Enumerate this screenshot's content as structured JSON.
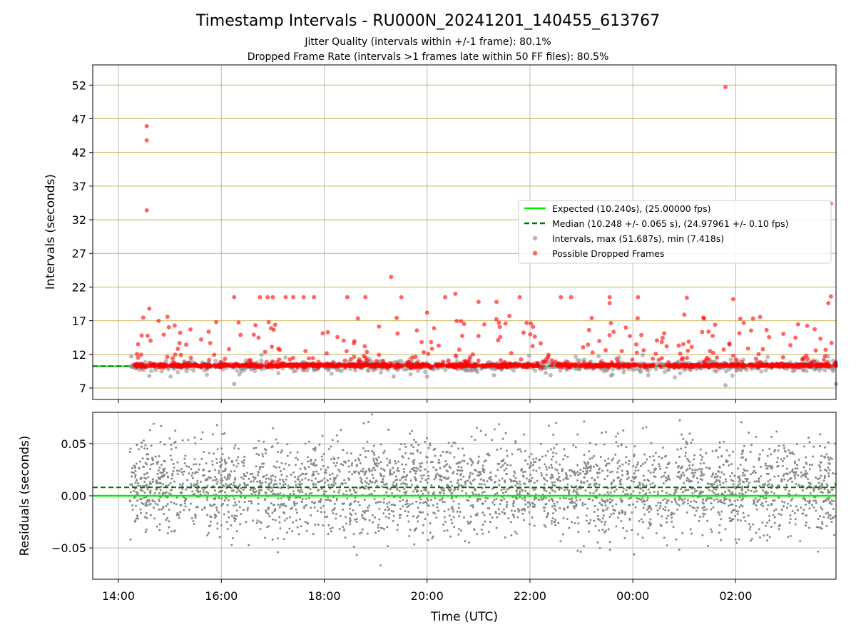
{
  "title": "Timestamp Intervals - RU000N_20241201_140455_613767",
  "subtitle_lines": [
    "Jitter Quality (intervals within +/-1 frame): 80.1%",
    "Dropped Frame Rate (intervals >1 frames late within 50 FF files): 80.5%"
  ],
  "colors": {
    "expected": "#00ee00",
    "median": "#007700",
    "intervals": "#888888",
    "dropped": "#ff0000",
    "grid": "#bbbbbb",
    "hgrid": "#c8b45a"
  },
  "chart_data": [
    {
      "type": "scatter",
      "xlabel": "",
      "ylabel": "Intervals (seconds)",
      "x_tick_labels": [
        "14:00",
        "16:00",
        "18:00",
        "20:00",
        "22:00",
        "00:00",
        "02:00"
      ],
      "x_ticks_hours": [
        14,
        16,
        18,
        20,
        22,
        24,
        26
      ],
      "xlim_hours": [
        13.5,
        27.95
      ],
      "ylim": [
        5.3,
        55
      ],
      "y_ticks": [
        7,
        12,
        17,
        22,
        27,
        32,
        37,
        42,
        47,
        52
      ],
      "grid": true,
      "legend_placement": "center-right",
      "legend": [
        "Expected (10.240s), (25.00000 fps)",
        "Median (10.248 +/- 0.065 s), (24.97961 +/- 0.10 fps)",
        "Intervals, max (51.687s), min (7.418s)",
        "Possible Dropped Frames"
      ],
      "expected_interval": 10.24,
      "median_interval": 10.248,
      "series": [
        {
          "name": "Possible Dropped Frames",
          "kind": "dropped",
          "sample_points": [
            [
              14.55,
              45.9
            ],
            [
              14.55,
              43.8
            ],
            [
              14.55,
              33.4
            ],
            [
              14.6,
              18.8
            ],
            [
              14.45,
              14.8
            ],
            [
              15.2,
              15.2
            ],
            [
              15.4,
              15.7
            ],
            [
              15.9,
              16.8
            ],
            [
              16.25,
              20.5
            ],
            [
              16.75,
              20.5
            ],
            [
              16.9,
              20.5
            ],
            [
              17.0,
              20.5
            ],
            [
              17.25,
              20.5
            ],
            [
              17.4,
              20.5
            ],
            [
              17.6,
              20.5
            ],
            [
              17.8,
              20.5
            ],
            [
              18.45,
              20.5
            ],
            [
              18.8,
              20.5
            ],
            [
              19.3,
              23.5
            ],
            [
              19.5,
              20.5
            ],
            [
              20.0,
              18.2
            ],
            [
              20.35,
              20.5
            ],
            [
              20.55,
              21.0
            ],
            [
              21.0,
              19.8
            ],
            [
              21.35,
              19.8
            ],
            [
              21.6,
              17.7
            ],
            [
              21.8,
              20.5
            ],
            [
              22.6,
              20.5
            ],
            [
              22.8,
              20.5
            ],
            [
              23.2,
              17.4
            ],
            [
              23.55,
              20.5
            ],
            [
              23.55,
              19.6
            ],
            [
              24.1,
              20.5
            ],
            [
              25.0,
              17.9
            ],
            [
              25.05,
              20.4
            ],
            [
              25.6,
              16.4
            ],
            [
              25.8,
              51.7
            ],
            [
              25.95,
              20.2
            ],
            [
              26.6,
              15.6
            ],
            [
              27.85,
              34.4
            ],
            [
              27.85,
              20.6
            ],
            [
              27.8,
              19.6
            ]
          ]
        },
        {
          "name": "Intervals, max (51.687s), min (7.418s)",
          "kind": "intervals",
          "sample_points": [
            [
              14.25,
              11.7
            ],
            [
              14.6,
              8.8
            ],
            [
              16.25,
              7.6
            ],
            [
              19.35,
              8.7
            ],
            [
              20.0,
              8.7
            ],
            [
              21.3,
              8.9
            ],
            [
              22.4,
              8.9
            ],
            [
              23.6,
              9.0
            ],
            [
              24.3,
              8.9
            ],
            [
              25.8,
              7.4
            ],
            [
              27.95,
              7.6
            ]
          ]
        }
      ]
    },
    {
      "type": "scatter",
      "xlabel": "Time (UTC)",
      "ylabel": "Residuals (seconds)",
      "y_ticks": [
        -0.05,
        0.0,
        0.05
      ],
      "y_tick_labels": [
        "−0.05",
        "0.00",
        "0.05"
      ],
      "ylim": [
        -0.08,
        0.08
      ],
      "xlim_hours": [
        13.5,
        27.95
      ],
      "grid": true,
      "expected_residual": 0.0,
      "median_residual": 0.008,
      "residual_std_estimate": 0.022
    }
  ]
}
